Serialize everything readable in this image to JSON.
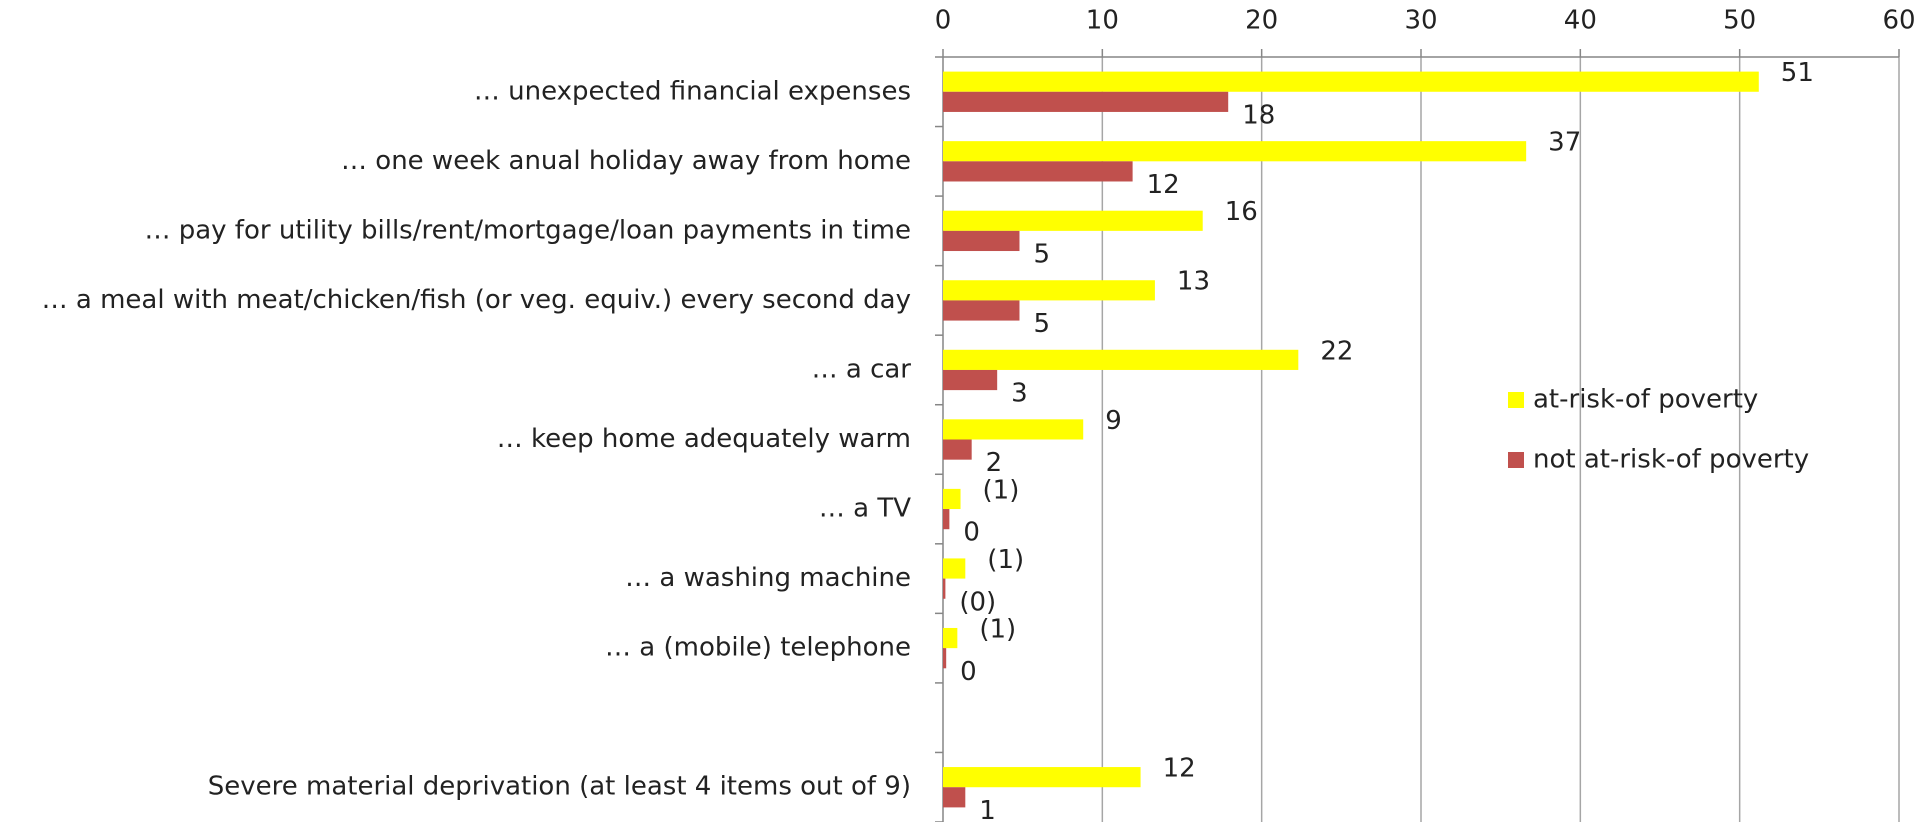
{
  "chart_data": {
    "type": "bar",
    "orientation": "horizontal",
    "categories": [
      "… unexpected financial expenses",
      "… one week anual holiday away from home",
      "… pay for utility bills/rent/mortgage/loan payments in time",
      "… a meal with meat/chicken/fish (or veg. equiv.) every second day",
      "…  a car",
      "… keep home adequately warm",
      "… a TV",
      "… a washing machine",
      "… a (mobile) telephone",
      null,
      "Severe material deprivation (at least 4 items out of 9)"
    ],
    "series": [
      {
        "name": "at-risk-of poverty",
        "color": "#ffff00",
        "values": [
          51.2,
          36.6,
          16.3,
          13.3,
          22.3,
          8.8,
          1.1,
          1.4,
          0.9,
          null,
          12.4
        ],
        "value_labels": [
          "51",
          "37",
          "16",
          "13",
          "22",
          "9",
          "(1)",
          "(1)",
          "(1)",
          null,
          "12"
        ]
      },
      {
        "name": "not at-risk-of poverty",
        "color": "#c0504d",
        "values": [
          17.9,
          11.9,
          4.8,
          4.8,
          3.4,
          1.8,
          0.4,
          0.15,
          0.2,
          null,
          1.4
        ],
        "value_labels": [
          "18",
          "12",
          "5",
          "5",
          "3",
          "2",
          "0",
          "(0)",
          "0",
          null,
          "1"
        ]
      }
    ],
    "xlim": [
      0,
      60
    ],
    "xticks": [
      0,
      10,
      20,
      30,
      40,
      50,
      60
    ],
    "grid": true,
    "legend": "right"
  }
}
